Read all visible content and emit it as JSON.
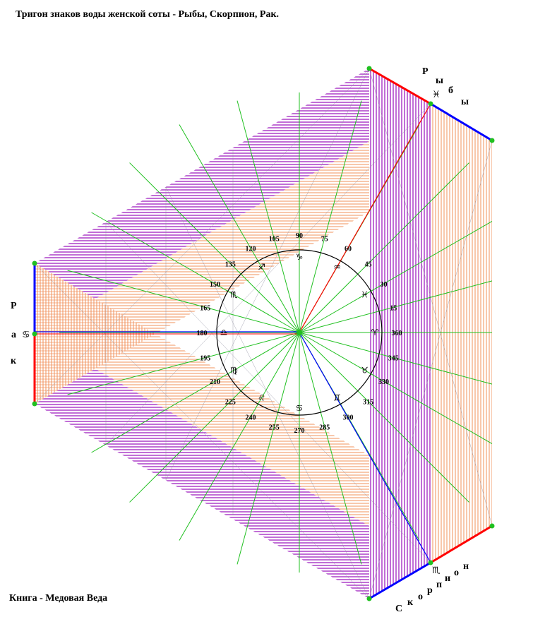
{
  "title": "Тригон знаков воды женской соты - Рыбы, Скорпион, Рак.",
  "footer": "Книга - Медовая Веда",
  "sign_names": {
    "pisces": [
      "Р",
      "ы",
      "б",
      "ы"
    ],
    "cancer": [
      "Р",
      "а",
      "к"
    ],
    "scorpio": [
      "С",
      "к",
      "о",
      "р",
      "п",
      "и",
      "о",
      "н"
    ]
  },
  "degree_labels": [
    "360",
    "15",
    "30",
    "45",
    "60",
    "75",
    "90",
    "105",
    "120",
    "135",
    "150",
    "165",
    "180",
    "195",
    "210",
    "225",
    "240",
    "255",
    "270",
    "285",
    "300",
    "315",
    "330",
    "345"
  ],
  "zodiac_glyphs": [
    "♈",
    "♓",
    "♒",
    "♑",
    "♐",
    "♏",
    "♎",
    "♍",
    "♌",
    "♋",
    "♊",
    "♉"
  ],
  "special_glyphs": {
    "pisces": "♓",
    "cancer": "♋",
    "scorpio": "♏"
  },
  "colors": {
    "outer_band": "#a020c0",
    "inner_band": "#f0905a",
    "ray": "#20c020",
    "fine_line": "#808080",
    "edge_red": "#ff0000",
    "edge_blue": "#0000ff",
    "node": "#20c020"
  }
}
